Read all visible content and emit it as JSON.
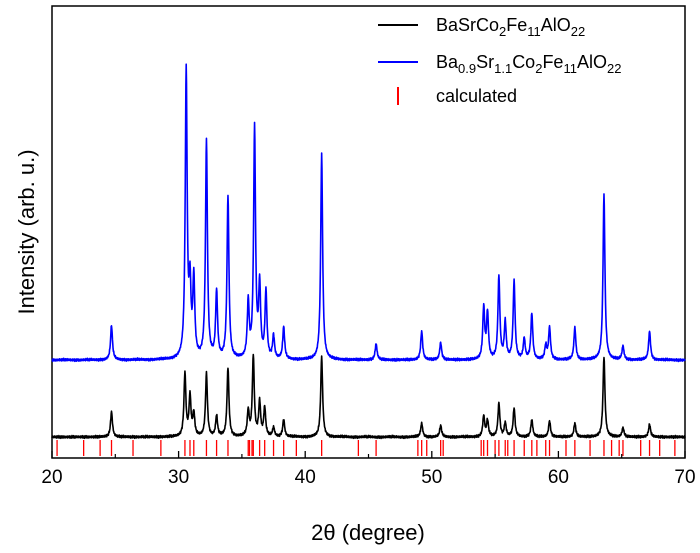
{
  "chart_data": {
    "type": "line",
    "xlabel": "2θ (degree)",
    "ylabel": "Intensity (arb. u.)",
    "xlim": [
      20,
      70
    ],
    "xticks": [
      "20",
      "30",
      "40",
      "50",
      "60",
      "70"
    ],
    "yticks": [],
    "grid": false,
    "legend_position": "top-right",
    "legend": [
      {
        "parts": [
          [
            "BaSrCo",
            ""
          ],
          [
            "2",
            "sub"
          ],
          [
            "Fe",
            ""
          ],
          [
            "11",
            "sub"
          ],
          [
            "AlO",
            ""
          ],
          [
            "22",
            "sub"
          ]
        ],
        "color": "#000000",
        "style": "line"
      },
      {
        "parts": [
          [
            "Ba",
            ""
          ],
          [
            "0.9",
            "sub"
          ],
          [
            "Sr",
            ""
          ],
          [
            "1.1",
            "sub"
          ],
          [
            "Co",
            ""
          ],
          [
            "2",
            "sub"
          ],
          [
            "Fe",
            ""
          ],
          [
            "11",
            "sub"
          ],
          [
            "AlO",
            ""
          ],
          [
            "22",
            "sub"
          ]
        ],
        "color": "#0000ff",
        "style": "line"
      },
      {
        "parts": [
          [
            "calculated",
            ""
          ]
        ],
        "color": "#ff0000",
        "style": "tick"
      }
    ],
    "series": [
      {
        "name": "BaSrCo2Fe11AlO22",
        "color": "#000000",
        "baseline": 0.0,
        "peaks": [
          [
            24.7,
            0.22
          ],
          [
            30.5,
            0.55
          ],
          [
            30.9,
            0.35
          ],
          [
            31.2,
            0.2
          ],
          [
            32.2,
            0.55
          ],
          [
            33.0,
            0.18
          ],
          [
            33.9,
            0.6
          ],
          [
            35.5,
            0.22
          ],
          [
            35.9,
            0.7
          ],
          [
            36.4,
            0.3
          ],
          [
            36.8,
            0.25
          ],
          [
            37.5,
            0.08
          ],
          [
            38.3,
            0.15
          ],
          [
            41.3,
            0.7
          ],
          [
            49.2,
            0.12
          ],
          [
            50.7,
            0.1
          ],
          [
            54.1,
            0.18
          ],
          [
            54.4,
            0.14
          ],
          [
            55.3,
            0.29
          ],
          [
            55.8,
            0.12
          ],
          [
            56.5,
            0.25
          ],
          [
            57.9,
            0.15
          ],
          [
            59.3,
            0.14
          ],
          [
            61.3,
            0.12
          ],
          [
            63.6,
            0.7
          ],
          [
            65.1,
            0.08
          ],
          [
            67.2,
            0.11
          ]
        ]
      },
      {
        "name": "Ba0.9Sr1.1Co2Fe11AlO22",
        "color": "#0000ff",
        "baseline": 1.0,
        "peaks": [
          [
            24.7,
            0.3
          ],
          [
            30.6,
            2.5
          ],
          [
            30.9,
            0.58
          ],
          [
            31.2,
            0.68
          ],
          [
            32.2,
            1.9
          ],
          [
            33.0,
            0.58
          ],
          [
            33.9,
            1.42
          ],
          [
            35.5,
            0.48
          ],
          [
            36.0,
            2.0
          ],
          [
            36.4,
            0.62
          ],
          [
            36.9,
            0.58
          ],
          [
            37.5,
            0.2
          ],
          [
            38.3,
            0.28
          ],
          [
            41.3,
            1.79
          ],
          [
            45.6,
            0.14
          ],
          [
            49.2,
            0.25
          ],
          [
            50.7,
            0.15
          ],
          [
            54.1,
            0.45
          ],
          [
            54.4,
            0.4
          ],
          [
            55.3,
            0.72
          ],
          [
            55.8,
            0.32
          ],
          [
            56.5,
            0.68
          ],
          [
            57.3,
            0.18
          ],
          [
            57.9,
            0.4
          ],
          [
            59.0,
            0.12
          ],
          [
            59.3,
            0.28
          ],
          [
            61.3,
            0.28
          ],
          [
            63.6,
            1.44
          ],
          [
            65.1,
            0.12
          ],
          [
            67.2,
            0.25
          ]
        ]
      }
    ],
    "calculated": {
      "name": "calculated",
      "color": "#ff0000",
      "positions": [
        20.4,
        22.5,
        23.8,
        24.7,
        26.4,
        28.6,
        30.5,
        30.9,
        31.2,
        32.2,
        33.0,
        33.9,
        35.5,
        35.6,
        35.8,
        35.9,
        36.4,
        36.8,
        37.5,
        38.3,
        39.3,
        41.3,
        44.2,
        45.6,
        48.9,
        49.2,
        49.6,
        50.7,
        50.9,
        53.9,
        54.1,
        54.4,
        55.0,
        55.3,
        55.8,
        56.0,
        56.5,
        57.3,
        57.9,
        58.3,
        59.0,
        59.3,
        60.6,
        61.3,
        62.5,
        63.6,
        64.2,
        64.8,
        65.1,
        66.5,
        67.2,
        68.0,
        69.2
      ]
    }
  }
}
